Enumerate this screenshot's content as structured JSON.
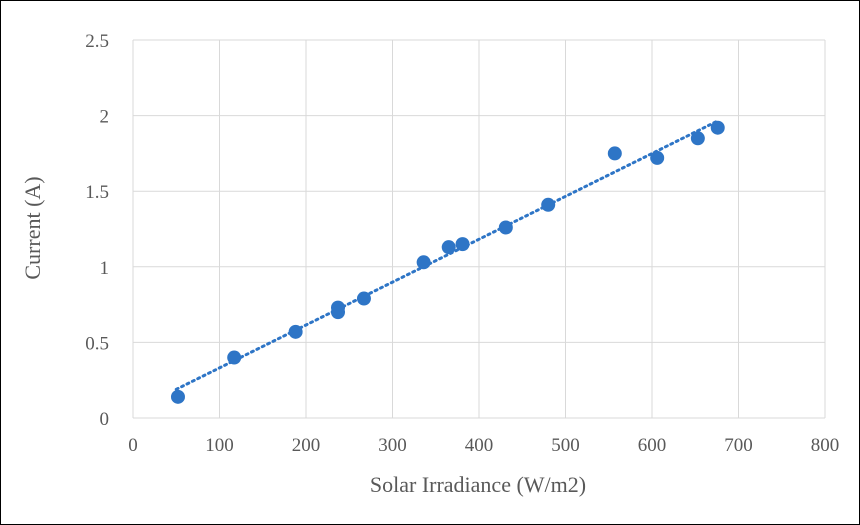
{
  "chart_data": {
    "type": "scatter",
    "title": "",
    "xlabel": "Solar Irradiance (W/m2)",
    "ylabel": "Current (A)",
    "xlim": [
      0,
      800
    ],
    "ylim": [
      0,
      2.5
    ],
    "x_ticks": [
      "0",
      "100",
      "200",
      "300",
      "400",
      "500",
      "600",
      "700",
      "800"
    ],
    "y_ticks": [
      "0",
      "0.5",
      "1",
      "1.5",
      "2",
      "2.5"
    ],
    "grid": true,
    "legend": "none",
    "point_color": "#2E75C6",
    "trendline": {
      "type": "linear",
      "style": "dotted",
      "color": "#2E75C6",
      "x_range": [
        50,
        675
      ]
    },
    "series": [
      {
        "points": [
          {
            "x": 52,
            "y": 0.14
          },
          {
            "x": 117,
            "y": 0.4
          },
          {
            "x": 188,
            "y": 0.57
          },
          {
            "x": 237,
            "y": 0.73
          },
          {
            "x": 237,
            "y": 0.7
          },
          {
            "x": 267,
            "y": 0.79
          },
          {
            "x": 336,
            "y": 1.03
          },
          {
            "x": 365,
            "y": 1.13
          },
          {
            "x": 381,
            "y": 1.15
          },
          {
            "x": 431,
            "y": 1.26
          },
          {
            "x": 480,
            "y": 1.41
          },
          {
            "x": 557,
            "y": 1.75
          },
          {
            "x": 606,
            "y": 1.72
          },
          {
            "x": 653,
            "y": 1.85
          },
          {
            "x": 676,
            "y": 1.92
          }
        ]
      }
    ]
  }
}
